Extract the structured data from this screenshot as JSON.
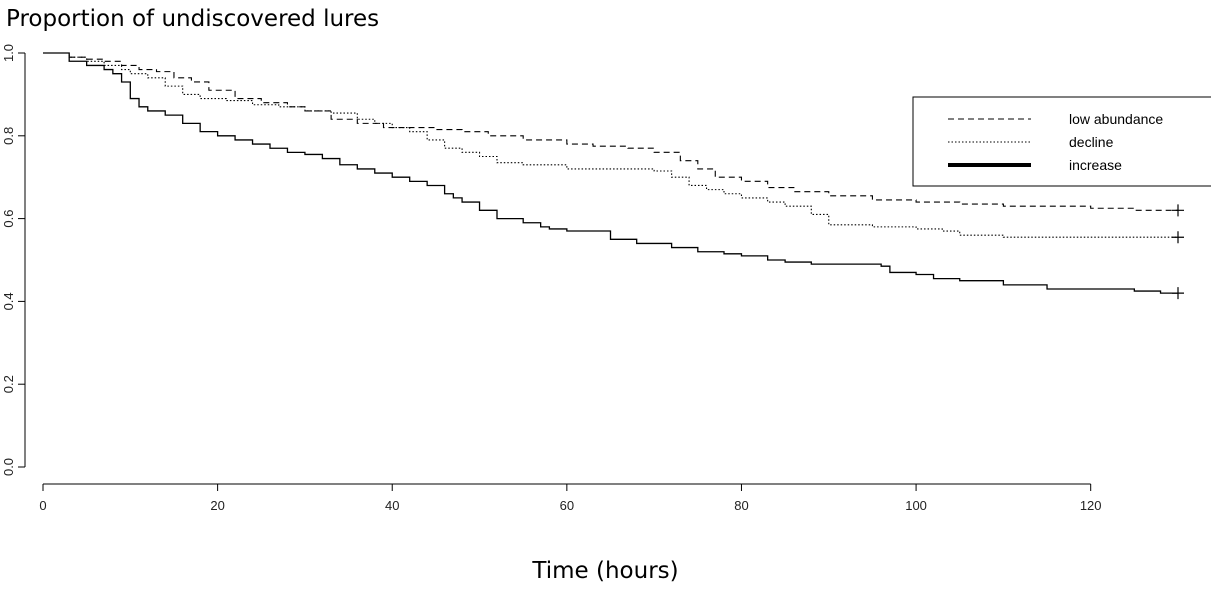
{
  "chart_data": {
    "type": "line",
    "title": "Proportion of undiscovered lures",
    "xlabel": "Time (hours)",
    "ylabel": "",
    "xlim": [
      0,
      130
    ],
    "ylim": [
      0,
      1
    ],
    "xticks": [
      0,
      20,
      40,
      60,
      80,
      100,
      120
    ],
    "yticks": [
      "0.0",
      "0.2",
      "0.4",
      "0.6",
      "0.8",
      "1.0"
    ],
    "ytick_values": [
      0,
      0.2,
      0.4,
      0.6,
      0.8,
      1.0
    ],
    "grid": false,
    "legend_position": "right",
    "series": [
      {
        "name": "low abundance",
        "style": "dashed",
        "censored_end": true,
        "x": [
          0,
          3,
          5,
          7,
          9,
          11,
          13,
          15,
          17,
          19,
          22,
          25,
          28,
          30,
          33,
          36,
          39,
          42,
          45,
          48,
          51,
          55,
          60,
          63,
          67,
          70,
          73,
          75,
          77,
          80,
          83,
          86,
          90,
          95,
          100,
          105,
          110,
          115,
          120,
          125,
          130
        ],
        "y": [
          1.0,
          0.99,
          0.985,
          0.98,
          0.97,
          0.96,
          0.955,
          0.94,
          0.93,
          0.91,
          0.89,
          0.88,
          0.87,
          0.86,
          0.84,
          0.83,
          0.82,
          0.82,
          0.815,
          0.81,
          0.8,
          0.79,
          0.78,
          0.775,
          0.77,
          0.76,
          0.74,
          0.72,
          0.7,
          0.69,
          0.675,
          0.665,
          0.655,
          0.645,
          0.64,
          0.635,
          0.63,
          0.63,
          0.625,
          0.62,
          0.62
        ]
      },
      {
        "name": "decline",
        "style": "dotted",
        "censored_end": true,
        "x": [
          0,
          3,
          5,
          7,
          9,
          10,
          12,
          14,
          16,
          18,
          21,
          24,
          27,
          30,
          33,
          36,
          38,
          40,
          42,
          44,
          46,
          48,
          50,
          52,
          55,
          60,
          63,
          65,
          70,
          72,
          74,
          76,
          78,
          80,
          83,
          85,
          88,
          90,
          95,
          100,
          103,
          105,
          110,
          115,
          120,
          125,
          130
        ],
        "y": [
          1.0,
          0.99,
          0.98,
          0.97,
          0.96,
          0.95,
          0.94,
          0.92,
          0.9,
          0.89,
          0.885,
          0.875,
          0.87,
          0.86,
          0.855,
          0.84,
          0.83,
          0.82,
          0.81,
          0.79,
          0.77,
          0.76,
          0.75,
          0.735,
          0.73,
          0.72,
          0.72,
          0.72,
          0.715,
          0.7,
          0.68,
          0.67,
          0.66,
          0.65,
          0.64,
          0.63,
          0.61,
          0.585,
          0.58,
          0.575,
          0.57,
          0.56,
          0.555,
          0.555,
          0.555,
          0.555,
          0.555
        ]
      },
      {
        "name": "increase",
        "style": "solid",
        "censored_end": true,
        "x": [
          0,
          3,
          5,
          7,
          8,
          9,
          10,
          11,
          12,
          14,
          16,
          18,
          20,
          22,
          24,
          26,
          28,
          30,
          32,
          34,
          36,
          38,
          40,
          42,
          44,
          46,
          47,
          48,
          50,
          52,
          55,
          57,
          58,
          60,
          65,
          68,
          72,
          75,
          78,
          80,
          83,
          85,
          88,
          90,
          96,
          97,
          100,
          102,
          105,
          110,
          115,
          120,
          125,
          128,
          130
        ],
        "y": [
          1.0,
          0.98,
          0.97,
          0.96,
          0.95,
          0.93,
          0.89,
          0.87,
          0.86,
          0.85,
          0.83,
          0.81,
          0.8,
          0.79,
          0.78,
          0.77,
          0.76,
          0.755,
          0.745,
          0.73,
          0.72,
          0.71,
          0.7,
          0.69,
          0.68,
          0.66,
          0.65,
          0.64,
          0.62,
          0.6,
          0.59,
          0.58,
          0.575,
          0.57,
          0.55,
          0.54,
          0.53,
          0.52,
          0.515,
          0.51,
          0.5,
          0.495,
          0.49,
          0.49,
          0.485,
          0.47,
          0.465,
          0.455,
          0.45,
          0.44,
          0.43,
          0.43,
          0.425,
          0.42,
          0.42
        ]
      }
    ]
  }
}
